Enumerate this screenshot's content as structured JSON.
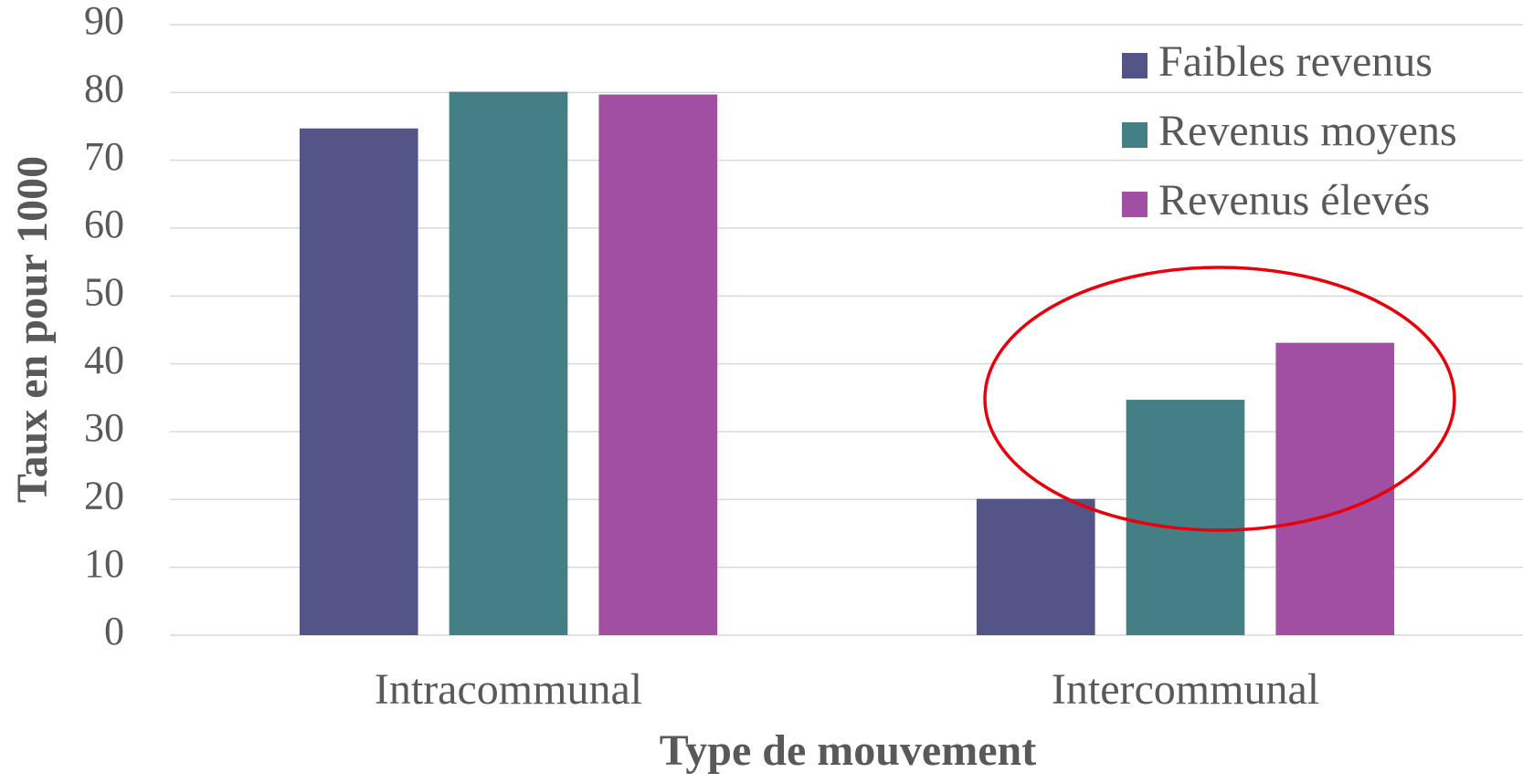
{
  "chart_data": {
    "type": "bar",
    "categories": [
      "Intracommunal",
      "Intercommunal"
    ],
    "series": [
      {
        "name": "Faibles revenus",
        "color": "#535488",
        "values": [
          74.7,
          20.1
        ]
      },
      {
        "name": "Revenus moyens",
        "color": "#437f84",
        "values": [
          80.1,
          34.7
        ]
      },
      {
        "name": "Revenus élevés",
        "color": "#a04fa3",
        "values": [
          79.7,
          43.1
        ]
      }
    ],
    "xlabel": "Type de mouvement",
    "ylabel": "Taux en pour 1000",
    "ylim": [
      0,
      90
    ],
    "yticks": [
      0,
      10,
      20,
      30,
      40,
      50,
      60,
      70,
      80,
      90
    ],
    "grid": true,
    "legend": "upper right"
  }
}
